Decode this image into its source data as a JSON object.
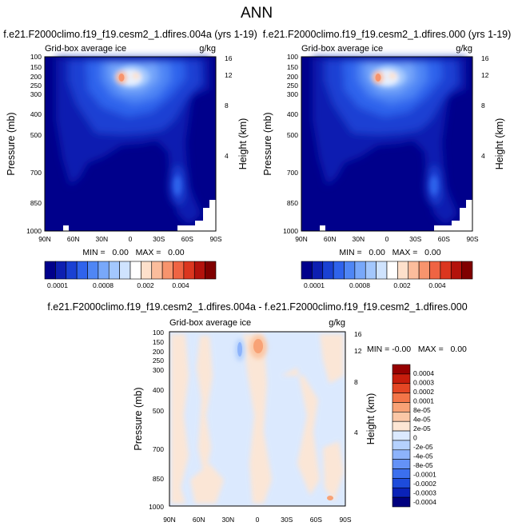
{
  "page": {
    "title": "ANN"
  },
  "colors": {
    "abs_scale": [
      "#00008b",
      "#0d1fb1",
      "#1a41d3",
      "#2f63ec",
      "#4f86f5",
      "#78a8fa",
      "#a3c7fd",
      "#cfe3fe",
      "#ffffff",
      "#fde0cb",
      "#fbbd9c",
      "#f7946d",
      "#ef6443",
      "#db361f",
      "#b3120c",
      "#800000"
    ],
    "diff_scale": [
      "#00007f",
      "#0a22b8",
      "#1d4bdb",
      "#3b6fee",
      "#6492f7",
      "#8db3fb",
      "#b5d1fd",
      "#dbe9fe",
      "#fde6d4",
      "#fbc7a6",
      "#f8a276",
      "#f37548",
      "#e44624",
      "#c71d0c",
      "#960000"
    ]
  },
  "chart_data": [
    {
      "type": "heatmap",
      "name": "Grid-box average ice (test)",
      "title": "f.e21.F2000climo.f19_f19.cesm2_1.dfires.004a (yrs 1-19)",
      "subtitle_left": "Grid-box average ice",
      "subtitle_right": "g/kg",
      "xlabel": "",
      "ylabel": "Pressure (mb)",
      "ylabel_right": "Height (km)",
      "x_ticks": [
        "90N",
        "60N",
        "30N",
        "0",
        "30S",
        "60S",
        "90S"
      ],
      "y_ticks": [
        "100",
        "150",
        "200",
        "250",
        "300",
        "400",
        "500",
        "700",
        "850",
        "1000"
      ],
      "y_right_ticks": [
        "16",
        "12",
        "8",
        "4"
      ],
      "y_scale": "log",
      "stats": "MIN =   0.00   MAX =   0.00",
      "colorbar": {
        "orientation": "horizontal",
        "tick_labels": [
          "0.0001",
          "0.0008",
          "0.002",
          "0.004"
        ],
        "levels": [
          0.0001,
          0.0002,
          0.0003,
          0.0004,
          0.0006,
          0.0008,
          0.001,
          0.0012,
          0.0015,
          0.002,
          0.0025,
          0.003,
          0.0035,
          0.004,
          0.0045
        ]
      }
    },
    {
      "type": "heatmap",
      "name": "Grid-box average ice (control)",
      "title": "f.e21.F2000climo.f19_f19.cesm2_1.dfires.000 (yrs 1-19)",
      "subtitle_left": "Grid-box average ice",
      "subtitle_right": "g/kg",
      "xlabel": "",
      "ylabel": "Pressure (mb)",
      "ylabel_right": "Height (km)",
      "x_ticks": [
        "90N",
        "60N",
        "30N",
        "0",
        "30S",
        "60S",
        "90S"
      ],
      "y_ticks": [
        "100",
        "150",
        "200",
        "250",
        "300",
        "400",
        "500",
        "700",
        "850",
        "1000"
      ],
      "y_right_ticks": [
        "16",
        "12",
        "8",
        "4"
      ],
      "y_scale": "log",
      "stats": "MIN =   0.00   MAX =   0.00",
      "colorbar": {
        "orientation": "horizontal",
        "tick_labels": [
          "0.0001",
          "0.0008",
          "0.002",
          "0.004"
        ],
        "levels": [
          0.0001,
          0.0002,
          0.0003,
          0.0004,
          0.0006,
          0.0008,
          0.001,
          0.0012,
          0.0015,
          0.002,
          0.0025,
          0.003,
          0.0035,
          0.004,
          0.0045
        ]
      }
    },
    {
      "type": "heatmap",
      "name": "Grid-box average ice (difference)",
      "title": "f.e21.F2000climo.f19_f19.cesm2_1.dfires.004a - f.e21.F2000climo.f19_f19.cesm2_1.dfires.000",
      "subtitle_left": "Grid-box average ice",
      "subtitle_right": "g/kg",
      "xlabel": "",
      "ylabel": "Pressure (mb)",
      "ylabel_right": "Height (km)",
      "x_ticks": [
        "90N",
        "60N",
        "30N",
        "0",
        "30S",
        "60S",
        "90S"
      ],
      "y_ticks": [
        "100",
        "150",
        "200",
        "250",
        "300",
        "400",
        "500",
        "700",
        "850",
        "1000"
      ],
      "y_right_ticks": [
        "16",
        "12",
        "8",
        "4"
      ],
      "y_scale": "log",
      "stats": "MIN = -0.00   MAX =   0.00",
      "colorbar": {
        "orientation": "vertical",
        "tick_labels": [
          "0.0004",
          "0.0003",
          "0.0002",
          "0.0001",
          "8e-05",
          "4e-05",
          "2e-05",
          "0",
          "-2e-05",
          "-4e-05",
          "-8e-05",
          "-0.0001",
          "-0.0002",
          "-0.0003",
          "-0.0004"
        ]
      }
    }
  ]
}
